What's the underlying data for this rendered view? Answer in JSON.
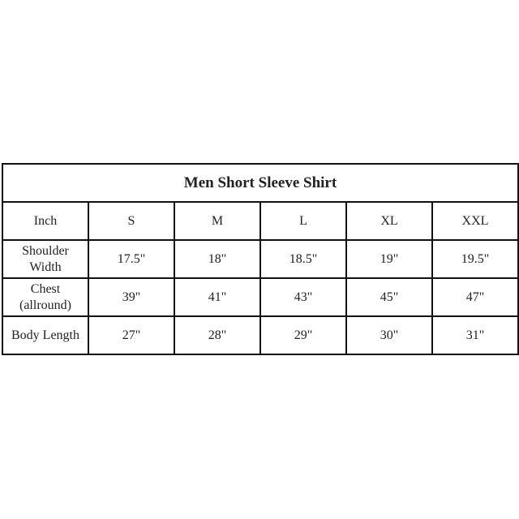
{
  "title": "Men Short Sleeve Shirt",
  "header": [
    "Inch",
    "S",
    "M",
    "L",
    "XL",
    "XXL"
  ],
  "rows": [
    {
      "label_lines": [
        "Shoulder",
        "Width"
      ],
      "values": [
        "17.5\"",
        "18\"",
        "18.5\"",
        "19\"",
        "19.5\""
      ]
    },
    {
      "label_lines": [
        "Chest",
        "(allround)"
      ],
      "values": [
        "39\"",
        "41\"",
        "43\"",
        "45\"",
        "47\""
      ]
    },
    {
      "label_lines": [
        "Body Length"
      ],
      "values": [
        "27\"",
        "28\"",
        "29\"",
        "30\"",
        "31\""
      ]
    }
  ]
}
